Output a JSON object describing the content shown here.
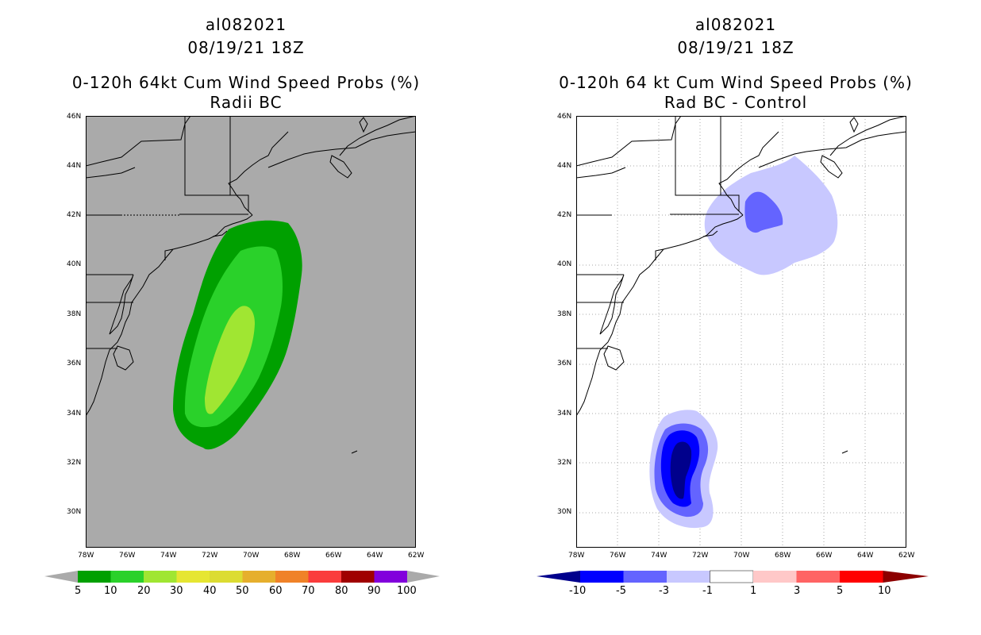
{
  "left_panel": {
    "title_lines": [
      "al082021",
      "08/19/21 18Z",
      "0-120h 64kt Cum Wind Speed Probs (%)",
      "Radii BC"
    ],
    "background_color": "#aaaaaa",
    "lat_labels": [
      "46N",
      "44N",
      "42N",
      "40N",
      "38N",
      "36N",
      "34N",
      "32N",
      "30N"
    ],
    "lon_labels": [
      "78W",
      "76W",
      "74W",
      "72W",
      "70W",
      "68W",
      "66W",
      "64W",
      "62W"
    ],
    "colorbar": {
      "labels": [
        "5",
        "10",
        "20",
        "30",
        "40",
        "50",
        "60",
        "70",
        "80",
        "90",
        "100"
      ],
      "colors": [
        "#00a000",
        "#2ad12a",
        "#a0e632",
        "#e6e632",
        "#dcdc32",
        "#e6af2d",
        "#f08228",
        "#fa3c3c",
        "#a00000",
        "#8200dc"
      ]
    }
  },
  "right_panel": {
    "title_lines": [
      "al082021",
      "08/19/21 18Z",
      "0-120h 64 kt Cum Wind Speed Probs (%)",
      "Rad BC - Control"
    ],
    "background_color": "#ffffff",
    "lat_labels": [
      "46N",
      "44N",
      "42N",
      "40N",
      "38N",
      "36N",
      "34N",
      "32N",
      "30N"
    ],
    "lon_labels": [
      "78W",
      "76W",
      "74W",
      "72W",
      "70W",
      "68W",
      "66W",
      "64W",
      "62W"
    ],
    "colorbar": {
      "labels": [
        "-10",
        "-5",
        "-3",
        "-1",
        "1",
        "3",
        "5",
        "10"
      ],
      "colors": [
        "#00008c",
        "#0000ff",
        "#6464ff",
        "#c8c8ff",
        "#ffffff",
        "#ffc8c8",
        "#ff6464",
        "#ff0000",
        "#8c0000"
      ]
    }
  }
}
